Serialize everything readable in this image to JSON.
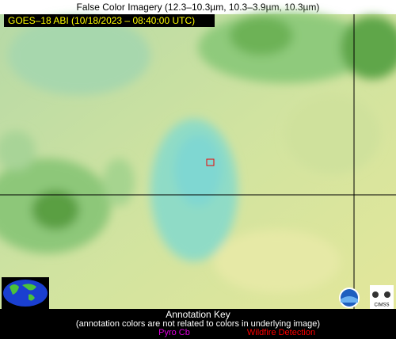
{
  "header": {
    "title": "False Color Imagery (12.3–10.3µm, 10.3–3.9µm, 10.3µm)"
  },
  "image": {
    "label": "GOES–18 ABI (10/18/2023 – 08:40:00 UTC)"
  },
  "annotation_key": {
    "title": "Annotation Key",
    "note": "(annotation colors are not related to colors in underlying image)",
    "items": [
      "Pyro Cb",
      "Wildfire Detection"
    ]
  },
  "logos": {
    "cimss": "CIMSS"
  }
}
